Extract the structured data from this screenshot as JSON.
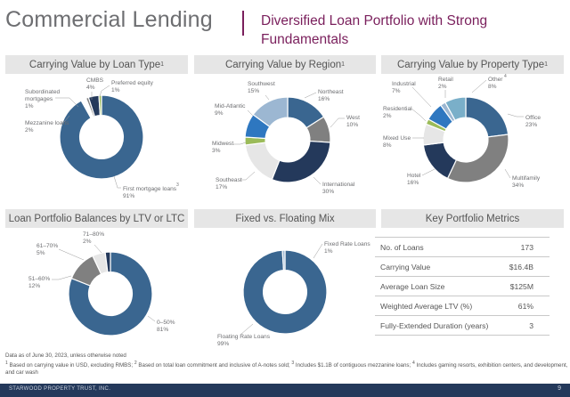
{
  "header": {
    "title": "Commercial Lending",
    "subtitle": "Diversified Loan Portfolio with Strong Fundamentals"
  },
  "panels": {
    "loan_type": "Carrying Value by Loan Type",
    "region": "Carrying Value by Region",
    "property": "Carrying Value by Property Type",
    "ltv": "Loan Portfolio Balances by LTV or LTC",
    "fixed": "Fixed vs. Floating Mix",
    "metrics": "Key Portfolio Metrics",
    "sup1": "1",
    "sup4": "4"
  },
  "colors": {
    "navy": "#24395b",
    "steel": "#3a6690",
    "blue": "#2e77c0",
    "lightblue": "#9cb7d2",
    "teal": "#7aafc9",
    "gray": "#808080",
    "lightgray": "#e6e6e6",
    "green": "#9bbb59",
    "purple": "#7a1f5c"
  },
  "chart_data": [
    {
      "type": "pie",
      "title": "Carrying Value by Loan Type",
      "slices": [
        {
          "name": "First mortgage loans",
          "value": 91,
          "label": "91%",
          "color": "#3a6690"
        },
        {
          "name": "Mezzanine loans",
          "value": 2,
          "label": "2%",
          "color": "#ffffff"
        },
        {
          "name": "Subordinated mortgages",
          "value": 1,
          "label": "1%",
          "color": "#808080"
        },
        {
          "name": "CMBS",
          "value": 4,
          "label": "4%",
          "color": "#24395b"
        },
        {
          "name": "Preferred equity",
          "value": 1,
          "label": "1%",
          "color": "#9bbb59"
        }
      ]
    },
    {
      "type": "pie",
      "title": "Carrying Value by Region",
      "slices": [
        {
          "name": "Northeast",
          "value": 16,
          "label": "16%",
          "color": "#3a6690"
        },
        {
          "name": "West",
          "value": 10,
          "label": "10%",
          "color": "#808080"
        },
        {
          "name": "International",
          "value": 30,
          "label": "30%",
          "color": "#24395b"
        },
        {
          "name": "Southeast",
          "value": 17,
          "label": "17%",
          "color": "#e6e6e6"
        },
        {
          "name": "Midwest",
          "value": 3,
          "label": "3%",
          "color": "#9bbb59"
        },
        {
          "name": "Mid-Atlantic",
          "value": 9,
          "label": "9%",
          "color": "#2e77c0"
        },
        {
          "name": "Southwest",
          "value": 15,
          "label": "15%",
          "color": "#9cb7d2"
        }
      ]
    },
    {
      "type": "pie",
      "title": "Carrying Value by Property Type",
      "slices": [
        {
          "name": "Office",
          "value": 23,
          "label": "23%",
          "color": "#3a6690"
        },
        {
          "name": "Multifamily",
          "value": 34,
          "label": "34%",
          "color": "#808080"
        },
        {
          "name": "Hotel",
          "value": 16,
          "label": "16%",
          "color": "#24395b"
        },
        {
          "name": "Mixed Use",
          "value": 8,
          "label": "8%",
          "color": "#e6e6e6"
        },
        {
          "name": "Residential",
          "value": 2,
          "label": "2%",
          "color": "#9bbb59"
        },
        {
          "name": "Industrial",
          "value": 7,
          "label": "7%",
          "color": "#2e77c0"
        },
        {
          "name": "Retail",
          "value": 2,
          "label": "2%",
          "color": "#9cb7d2"
        },
        {
          "name": "Other",
          "value": 8,
          "label": "8%",
          "color": "#7aafc9"
        }
      ]
    },
    {
      "type": "pie",
      "title": "Loan Portfolio Balances by LTV or LTC",
      "slices": [
        {
          "name": "0–50%",
          "value": 81,
          "label": "81%",
          "color": "#3a6690"
        },
        {
          "name": "51–60%",
          "value": 12,
          "label": "12%",
          "color": "#808080"
        },
        {
          "name": "61–70%",
          "value": 5,
          "label": "5%",
          "color": "#e6e6e6"
        },
        {
          "name": "71–80%",
          "value": 2,
          "label": "2%",
          "color": "#24395b"
        }
      ]
    },
    {
      "type": "pie",
      "title": "Fixed vs. Floating Mix",
      "slices": [
        {
          "name": "Floating Rate Loans",
          "value": 99,
          "label": "99%",
          "color": "#3a6690"
        },
        {
          "name": "Fixed Rate Loans",
          "value": 1,
          "label": "1%",
          "color": "#9cb7d2"
        }
      ]
    }
  ],
  "labels": {
    "lt_first": "First mortgage loans",
    "lt_first_v": "91%",
    "lt_first_sup": "3",
    "lt_mezz": "Mezzanine loans",
    "lt_mezz_v": "2%",
    "lt_sub1": "Subordinated",
    "lt_sub2": "mortgages",
    "lt_sub_v": "1%",
    "lt_cmbs": "CMBS",
    "lt_cmbs_v": "4%",
    "lt_pref": "Preferred equity",
    "lt_pref_v": "1%",
    "rg_ne": "Northeast",
    "rg_ne_v": "16%",
    "rg_w": "West",
    "rg_w_v": "10%",
    "rg_int": "International",
    "rg_int_v": "30%",
    "rg_se": "Southeast",
    "rg_se_v": "17%",
    "rg_mw": "Midwest",
    "rg_mw_v": "3%",
    "rg_ma": "Mid-Atlantic",
    "rg_ma_v": "9%",
    "rg_sw": "Southwest",
    "rg_sw_v": "15%",
    "pt_off": "Office",
    "pt_off_v": "23%",
    "pt_mf": "Multifamily",
    "pt_mf_v": "34%",
    "pt_hot": "Hotel",
    "pt_hot_v": "16%",
    "pt_mu": "Mixed Use",
    "pt_mu_v": "8%",
    "pt_res": "Residential",
    "pt_res_v": "2%",
    "pt_ind": "Industrial",
    "pt_ind_v": "7%",
    "pt_ret": "Retail",
    "pt_ret_v": "2%",
    "pt_oth": "Other",
    "pt_oth_v": "8%",
    "pt_oth_sup": "4",
    "ltv_050": "0–50%",
    "ltv_050_v": "81%",
    "ltv_5160": "51–60%",
    "ltv_5160_v": "12%",
    "ltv_6170": "61–70%",
    "ltv_6170_v": "5%",
    "ltv_7180": "71–80%",
    "ltv_7180_v": "2%",
    "fx_fixed": "Fixed Rate Loans",
    "fx_fixed_v": "1%",
    "fx_float": "Floating Rate Loans",
    "fx_float_v": "99%"
  },
  "metrics": [
    {
      "label": "No. of Loans",
      "value": "173"
    },
    {
      "label": "Carrying Value",
      "value": "$16.4B"
    },
    {
      "label": "Average Loan Size",
      "value": "$125M"
    },
    {
      "label": "Weighted Average LTV (%)",
      "value": "61%"
    },
    {
      "label": "Fully-Extended Duration (years)",
      "value": "3"
    }
  ],
  "footnotes": {
    "line1": "Data as of June 30, 2023, unless otherwise noted",
    "n1": "1",
    "t1": "Based on carrying value in USD, excluding RMBS;",
    "n2": "2",
    "t2": "Based on total loan commitment and inclusive of A-notes sold;",
    "n3": "3",
    "t3": "Includes $1.1B of contiguous mezzanine loans;",
    "n4": "4",
    "t4": "Includes gaming resorts, exhibition centers, and development, and car wash"
  },
  "footer": {
    "company": "STARWOOD PROPERTY TRUST, INC.",
    "page": "9"
  }
}
